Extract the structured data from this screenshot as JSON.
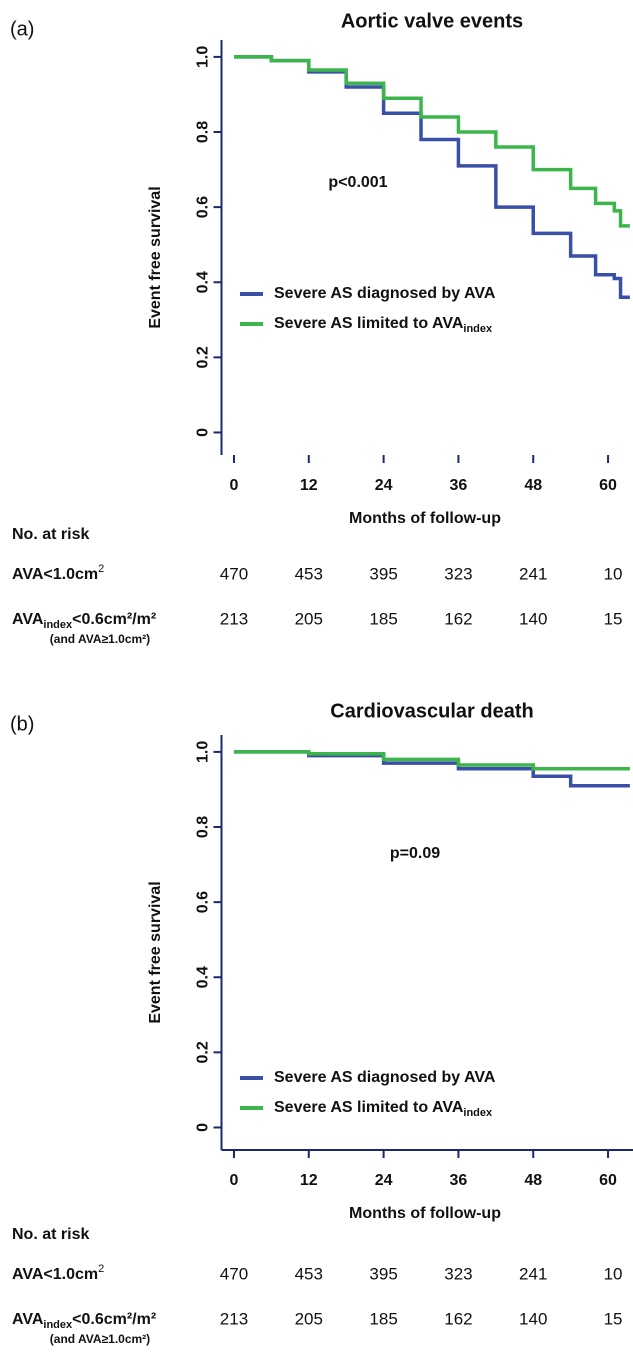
{
  "chart_data": [
    {
      "type": "line",
      "step": true,
      "panel_label": "(a)",
      "title": "Aortic valve events",
      "xlabel": "Months of follow-up",
      "ylabel": "Event free survival",
      "annotation": "p<0.001",
      "xlim": [
        -2,
        64
      ],
      "ylim": [
        -0.06,
        1.045
      ],
      "xticks": [
        0,
        12,
        24,
        36,
        48,
        60
      ],
      "yticks": [
        0,
        0.2,
        0.4,
        0.6,
        0.8,
        {
          "value": 1,
          "label": "1.0"
        }
      ],
      "x": [
        0,
        6,
        12,
        18,
        24,
        30,
        36,
        42,
        48,
        54,
        58,
        61,
        62,
        63.5
      ],
      "series": [
        {
          "name": "Severe AS diagnosed by AVA",
          "color": "#3a4fa8",
          "values": [
            1,
            0.99,
            0.96,
            0.92,
            0.85,
            0.78,
            0.71,
            0.6,
            0.53,
            0.47,
            0.42,
            0.41,
            0.36,
            0.36
          ]
        },
        {
          "name": "Severe AS limited to AVA",
          "name_sub": "index",
          "color": "#3cb64a",
          "values": [
            1,
            0.99,
            0.965,
            0.93,
            0.89,
            0.84,
            0.8,
            0.76,
            0.7,
            0.65,
            0.61,
            0.59,
            0.55,
            0.55
          ]
        }
      ],
      "risk_table": {
        "title": "No. at risk",
        "rows": [
          {
            "label": "AVA<1.0cm",
            "label_sup": "2",
            "values": [
              470,
              453,
              395,
              323,
              241,
              10
            ]
          },
          {
            "label": "AVA",
            "label_sub": "index",
            "label_rest": "<0.6cm²/m²",
            "note": "(and AVA≥1.0cm²)",
            "values": [
              213,
              205,
              185,
              162,
              140,
              15
            ]
          }
        ]
      }
    },
    {
      "type": "line",
      "step": true,
      "panel_label": "(b)",
      "title": "Cardiovascular death",
      "xlabel": "Months of follow-up",
      "ylabel": "Event free survival",
      "annotation": "p=0.09",
      "xlim": [
        -2,
        64
      ],
      "ylim": [
        -0.06,
        1.045
      ],
      "xticks": [
        0,
        12,
        24,
        36,
        48,
        60
      ],
      "yticks": [
        0,
        0.2,
        0.4,
        0.6,
        0.8,
        {
          "value": 1,
          "label": "1.0"
        }
      ],
      "x": [
        0,
        12,
        24,
        36,
        48,
        54,
        63.5
      ],
      "series": [
        {
          "name": "Severe AS diagnosed by AVA",
          "color": "#3a4fa8",
          "values": [
            1,
            0.99,
            0.97,
            0.955,
            0.935,
            0.91,
            0.91
          ]
        },
        {
          "name": "Severe AS limited to AVA",
          "name_sub": "index",
          "color": "#3cb64a",
          "values": [
            1,
            0.995,
            0.98,
            0.965,
            0.955,
            0.955,
            0.955
          ]
        }
      ],
      "risk_table": {
        "title": "No. at risk",
        "rows": [
          {
            "label": "AVA<1.0cm",
            "label_sup": "2",
            "values": [
              470,
              453,
              395,
              323,
              241,
              10
            ]
          },
          {
            "label": "AVA",
            "label_sub": "index",
            "label_rest": "<0.6cm²/m²",
            "note": "(and AVA≥1.0cm²)",
            "values": [
              213,
              205,
              185,
              162,
              140,
              15
            ]
          }
        ]
      }
    }
  ]
}
